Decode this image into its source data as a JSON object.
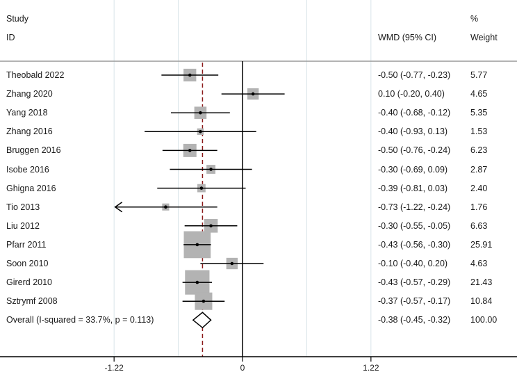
{
  "chart_data": {
    "type": "forest",
    "title": "",
    "headers": {
      "study_line1": "Study",
      "study_line2": "ID",
      "effect": "WMD (95% CI)",
      "weight_line1": "%",
      "weight_line2": "Weight"
    },
    "studies": [
      {
        "id": "Theobald 2022",
        "wmd": -0.5,
        "lo": -0.77,
        "hi": -0.23,
        "label": "-0.50 (-0.77, -0.23)",
        "weight": "5.77"
      },
      {
        "id": "Zhang 2020",
        "wmd": 0.1,
        "lo": -0.2,
        "hi": 0.4,
        "label": "0.10 (-0.20, 0.40)",
        "weight": "4.65"
      },
      {
        "id": "Yang 2018",
        "wmd": -0.4,
        "lo": -0.68,
        "hi": -0.12,
        "label": "-0.40 (-0.68, -0.12)",
        "weight": "5.35"
      },
      {
        "id": "Zhang 2016",
        "wmd": -0.4,
        "lo": -0.93,
        "hi": 0.13,
        "label": "-0.40 (-0.93, 0.13)",
        "weight": "1.53"
      },
      {
        "id": "Bruggen 2016",
        "wmd": -0.5,
        "lo": -0.76,
        "hi": -0.24,
        "label": "-0.50 (-0.76, -0.24)",
        "weight": "6.23"
      },
      {
        "id": "Isobe 2016",
        "wmd": -0.3,
        "lo": -0.69,
        "hi": 0.09,
        "label": "-0.30 (-0.69, 0.09)",
        "weight": "2.87"
      },
      {
        "id": "Ghigna 2016",
        "wmd": -0.39,
        "lo": -0.81,
        "hi": 0.03,
        "label": "-0.39 (-0.81, 0.03)",
        "weight": "2.40"
      },
      {
        "id": "Tio 2013",
        "wmd": -0.73,
        "lo": -1.22,
        "hi": -0.24,
        "label": "-0.73 (-1.22, -0.24)",
        "weight": "1.76",
        "arrow_left": true
      },
      {
        "id": "Liu 2012",
        "wmd": -0.3,
        "lo": -0.55,
        "hi": -0.05,
        "label": "-0.30 (-0.55, -0.05)",
        "weight": "6.63"
      },
      {
        "id": "Pfarr 2011",
        "wmd": -0.43,
        "lo": -0.56,
        "hi": -0.3,
        "label": "-0.43 (-0.56, -0.30)",
        "weight": "25.91"
      },
      {
        "id": "Soon 2010",
        "wmd": -0.1,
        "lo": -0.4,
        "hi": 0.2,
        "label": "-0.10 (-0.40, 0.20)",
        "weight": "4.63"
      },
      {
        "id": "Girerd 2010",
        "wmd": -0.43,
        "lo": -0.57,
        "hi": -0.29,
        "label": "-0.43 (-0.57, -0.29)",
        "weight": "21.43"
      },
      {
        "id": "Sztrymf 2008",
        "wmd": -0.37,
        "lo": -0.57,
        "hi": -0.17,
        "label": "-0.37 (-0.57, -0.17)",
        "weight": "10.84"
      }
    ],
    "overall": {
      "id": "Overall  (I-squared = 33.7%, p = 0.113)",
      "wmd": -0.38,
      "lo": -0.45,
      "hi": -0.32,
      "label": "-0.38 (-0.45, -0.32)",
      "weight": "100.00",
      "i_squared": "33.7%",
      "p": "0.113"
    },
    "x_axis": {
      "ticks": [
        -1.22,
        0,
        1.22
      ],
      "tick_labels": [
        "-1.22",
        "0",
        "1.22"
      ],
      "range": [
        -1.22,
        1.22
      ],
      "null_line": 0
    },
    "colors": {
      "box": "#b3b3b3",
      "line": "#000000",
      "overall_dashed": "#8b1a1a",
      "grid": "#d8e4e8",
      "separator": "#9a9a9a"
    }
  }
}
